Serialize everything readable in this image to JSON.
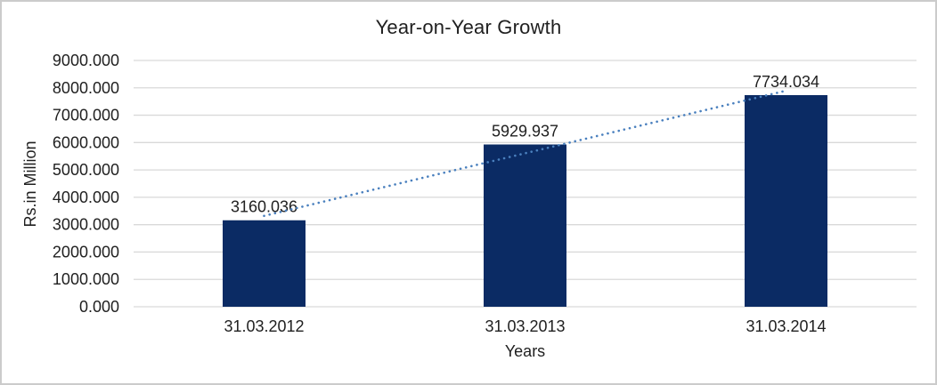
{
  "chart_data": {
    "type": "bar",
    "title": "Year-on-Year Growth",
    "xlabel": "Years",
    "ylabel": "Rs.in Million",
    "categories": [
      "31.03.2012",
      "31.03.2013",
      "31.03.2014"
    ],
    "values": [
      3160.036,
      5929.937,
      7734.034
    ],
    "data_labels": [
      "3160.036",
      "5929.937",
      "7734.034"
    ],
    "ylim": [
      0,
      9000
    ],
    "y_tick_labels": [
      "0.000",
      "1000.000",
      "2000.000",
      "3000.000",
      "4000.000",
      "5000.000",
      "6000.000",
      "7000.000",
      "8000.000",
      "9000.000"
    ],
    "grid": true,
    "legend": "none",
    "trendline": {
      "kind": "linear",
      "style": "dotted"
    },
    "colors": {
      "bar": "#0b2b64",
      "trendline": "#4a80be",
      "gridline": "#d9d9d9",
      "text": "#1f1f1f",
      "frame_border": "#cbcbcb",
      "background": "#ffffff"
    }
  }
}
